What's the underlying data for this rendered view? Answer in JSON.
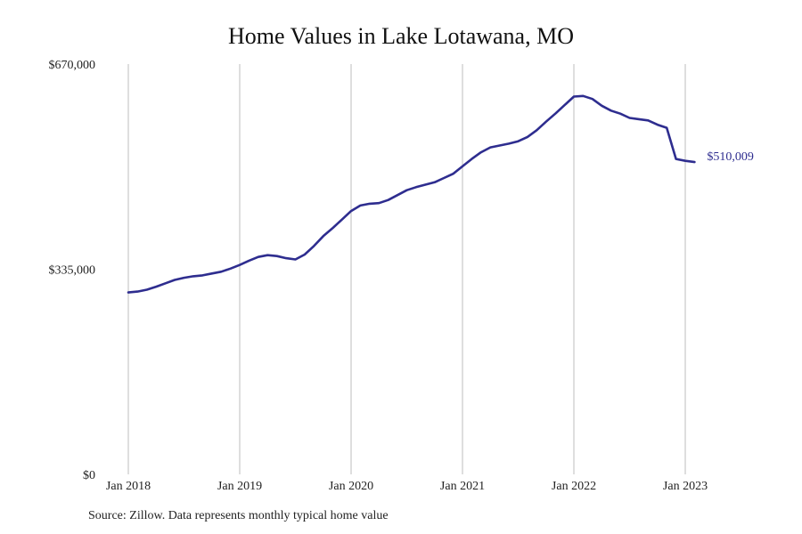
{
  "title": "Home Values in Lake Lotawana, MO",
  "source": "Source: Zillow. Data represents monthly typical home value",
  "chart_data": {
    "type": "line",
    "title": "Home Values in Lake Lotawana, MO",
    "xlabel": "",
    "ylabel": "",
    "ylim": [
      0,
      670000
    ],
    "yticks": [
      0,
      335000,
      670000
    ],
    "ytick_labels": [
      "$0",
      "$335,000",
      "$670,000"
    ],
    "xlim": [
      0,
      61
    ],
    "xticks": [
      0,
      12,
      24,
      36,
      48,
      60
    ],
    "xtick_labels": [
      "Jan 2018",
      "Jan 2019",
      "Jan 2020",
      "Jan 2021",
      "Jan 2022",
      "Jan 2023"
    ],
    "grid": "vertical",
    "line_color": "#2e2d8f",
    "end_label": "$510,009",
    "series": [
      {
        "x": [
          0,
          1,
          2,
          3,
          4,
          5,
          6,
          7,
          8,
          9,
          10,
          11,
          12,
          13,
          14,
          15,
          16,
          17,
          18,
          19,
          20,
          21,
          22,
          23,
          24,
          25,
          26,
          27,
          28,
          29,
          30,
          31,
          32,
          33,
          34,
          35,
          36,
          37,
          38,
          39,
          40,
          41,
          42,
          43,
          44,
          45,
          46,
          47,
          48,
          49,
          50,
          51,
          52,
          53,
          54,
          55,
          56,
          57,
          58,
          59,
          60,
          61
        ],
        "values": [
          297000,
          298500,
          301500,
          306500,
          312000,
          317500,
          321000,
          323500,
          325000,
          328000,
          331000,
          336000,
          342000,
          349000,
          355000,
          358000,
          356500,
          353000,
          351000,
          359000,
          373000,
          389000,
          402000,
          416000,
          430000,
          439000,
          442000,
          443000,
          448000,
          456000,
          464000,
          469000,
          473000,
          477000,
          484000,
          491000,
          503000,
          515000,
          526000,
          534000,
          537000,
          540000,
          544000,
          551000,
          562000,
          576000,
          589000,
          603000,
          617000,
          618000,
          613000,
          602000,
          594000,
          589000,
          582000,
          580000,
          578000,
          571000,
          566000,
          515000,
          512000,
          510009
        ]
      }
    ]
  }
}
